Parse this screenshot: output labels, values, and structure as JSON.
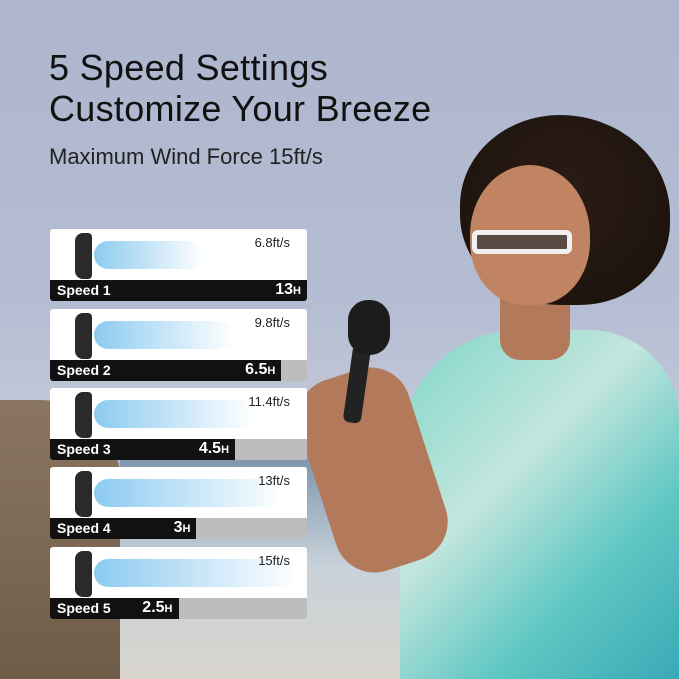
{
  "headline": [
    "5 Speed Settings",
    "Customize Your Breeze"
  ],
  "subtitle": "Maximum Wind Force 15ft/s",
  "speeds": [
    {
      "label": "Speed 1",
      "wind": "6.8ft/s",
      "hours": "13",
      "unit": "H",
      "fill_percent": 100
    },
    {
      "label": "Speed 2",
      "wind": "9.8ft/s",
      "hours": "6.5",
      "unit": "H",
      "fill_percent": 90
    },
    {
      "label": "Speed 3",
      "wind": "11.4ft/s",
      "hours": "4.5",
      "unit": "H",
      "fill_percent": 72
    },
    {
      "label": "Speed 4",
      "wind": "13ft/s",
      "hours": "3",
      "unit": "H",
      "fill_percent": 57
    },
    {
      "label": "Speed 5",
      "wind": "15ft/s",
      "hours": "2.5",
      "unit": "H",
      "fill_percent": 50
    }
  ],
  "colors": {
    "bar": "#111111",
    "bar_bg": "#bdbdbd",
    "wind": "#8ccbf0"
  }
}
